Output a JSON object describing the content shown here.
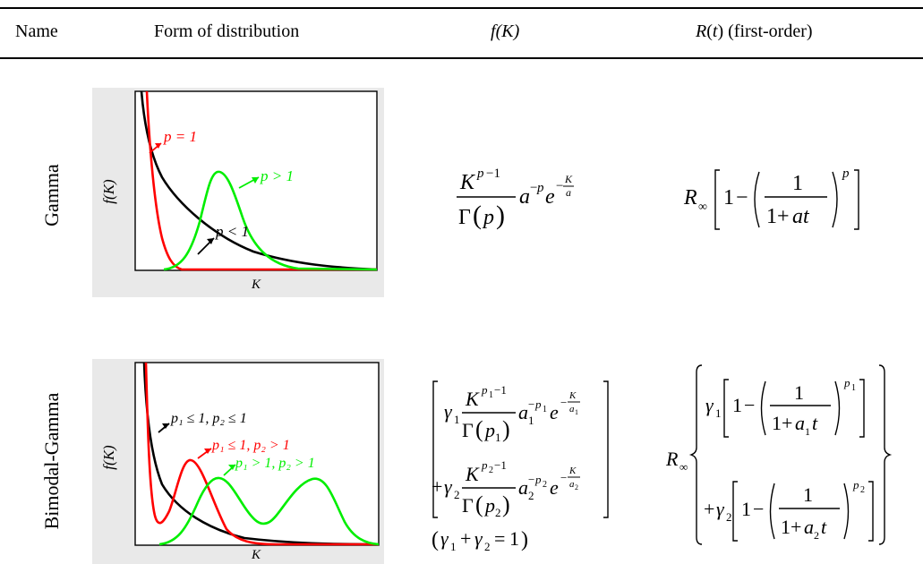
{
  "header": {
    "col1": "Name",
    "col2": "Form of distribution",
    "col3_f": "f",
    "col3_arg": "(K)",
    "col4_r": "R",
    "col4_open": "(",
    "col4_t": "t",
    "col4_close": ")",
    "col4_note": " (first-order)"
  },
  "rows": [
    {
      "name": "Gamma",
      "plot": {
        "ylabel": "f(K)",
        "xlabel": "K",
        "curve_colors": [
          "#ff0000",
          "#000000",
          "#00ee00"
        ],
        "annotations": [
          "p = 1",
          "p > 1",
          "p < 1"
        ]
      }
    },
    {
      "name": "Bimodal-Gamma",
      "plot": {
        "ylabel": "f(K)",
        "xlabel": "K",
        "curve_colors": [
          "#000000",
          "#ff0000",
          "#00ee00"
        ],
        "annotations": [
          "p₁ ≤ 1, p₂ ≤ 1",
          "p₁ ≤ 1, p₂ > 1",
          "p₁ > 1, p₂ > 1"
        ]
      }
    }
  ]
}
